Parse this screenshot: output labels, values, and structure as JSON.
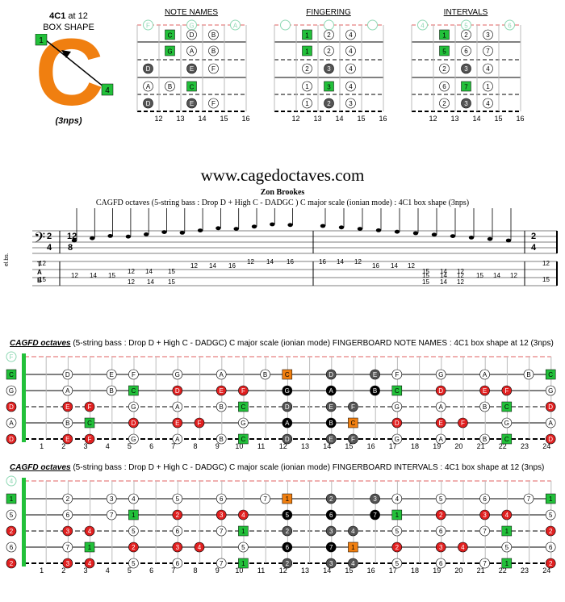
{
  "box": {
    "title": "4C1",
    "title_suffix": " at 12",
    "subtitle": "BOX SHAPE",
    "letter": "C",
    "finger_start": "1",
    "finger_end": "4",
    "nps": "(3nps)"
  },
  "panels": [
    {
      "label": "NOTE NAMES",
      "open": [
        "F",
        "G",
        "A"
      ],
      "grid": [
        [
          "",
          "C",
          "D",
          "B"
        ],
        [
          "",
          "G",
          "A",
          "B"
        ],
        [
          "D",
          "",
          "E",
          "F"
        ],
        [
          "A",
          "B",
          "C",
          ""
        ],
        [
          "D",
          "",
          "E",
          "F"
        ]
      ]
    },
    {
      "label": "FINGERING",
      "open": [
        "",
        "",
        ""
      ],
      "grid": [
        [
          "",
          "1",
          "2",
          "4"
        ],
        [
          "",
          "1",
          "2",
          "4"
        ],
        [
          "",
          "2",
          "3",
          "4"
        ],
        [
          "",
          "1",
          "3",
          "4"
        ],
        [
          "",
          "1",
          "2",
          "3"
        ]
      ]
    },
    {
      "label": "INTERVALS",
      "open": [
        "4",
        "5",
        "6"
      ],
      "grid": [
        [
          "",
          "1",
          "2",
          "3"
        ],
        [
          "",
          "5",
          "6",
          "7"
        ],
        [
          "",
          "2",
          "3",
          "4"
        ],
        [
          "",
          "6",
          "7",
          "1"
        ],
        [
          "",
          "2",
          "3",
          "4"
        ]
      ]
    }
  ],
  "fret_numbers_small": [
    "12",
    "13",
    "14",
    "15",
    "16"
  ],
  "site": "www.cagedoctaves.com",
  "author": "Zon Brookes",
  "tab_caption": "CAGFD octaves (5-string bass : Drop D + High C - DADGC )  C major scale (ionian mode) : 4C1 box shape (3nps)",
  "tab_numbers": {
    "row1": [
      "12",
      "12",
      "14",
      "15",
      "12",
      "14",
      "15",
      "12",
      "14",
      "16",
      "12",
      "14",
      "16"
    ],
    "row2": [
      "15",
      "12",
      "14",
      "15",
      "12",
      "14",
      "15",
      "15",
      "14",
      "12",
      "15",
      "14",
      "12"
    ],
    "row3": [
      "16",
      "14",
      "12",
      "16",
      "14",
      "12",
      "15",
      "14",
      "12",
      "15",
      "14",
      "12",
      "12"
    ],
    "row4": [
      "15",
      "12",
      "14",
      "15",
      "12",
      "14",
      "15",
      "15",
      "14",
      "12",
      "12",
      "14",
      "15"
    ]
  },
  "full_boards": [
    {
      "title_bold": "CAGFD octaves",
      "title_rest": " (5-string bass : Drop D + High C - DADGC) C major scale (ionian mode) FINGERBOARD NOTE NAMES : 4C1 box shape at 12 (3nps)"
    },
    {
      "title_bold": "CAGFD octaves",
      "title_rest": " (5-string bass : Drop D + High C - DADGC) C major scale (ionian mode) FINGERBOARD INTERVALS : 4C1 box shape at 12 (3nps)"
    }
  ],
  "fret_numbers": [
    "1",
    "2",
    "3",
    "4",
    "5",
    "6",
    "7",
    "8",
    "9",
    "10",
    "11",
    "12",
    "13",
    "14",
    "15",
    "16",
    "17",
    "18",
    "19",
    "20",
    "21",
    "22",
    "23",
    "24"
  ],
  "colors": {
    "green": "#22c03a",
    "orange": "#f07f10",
    "red": "#e02020",
    "dark": "#555555",
    "black": "#000000",
    "accent": "#22c03a"
  }
}
